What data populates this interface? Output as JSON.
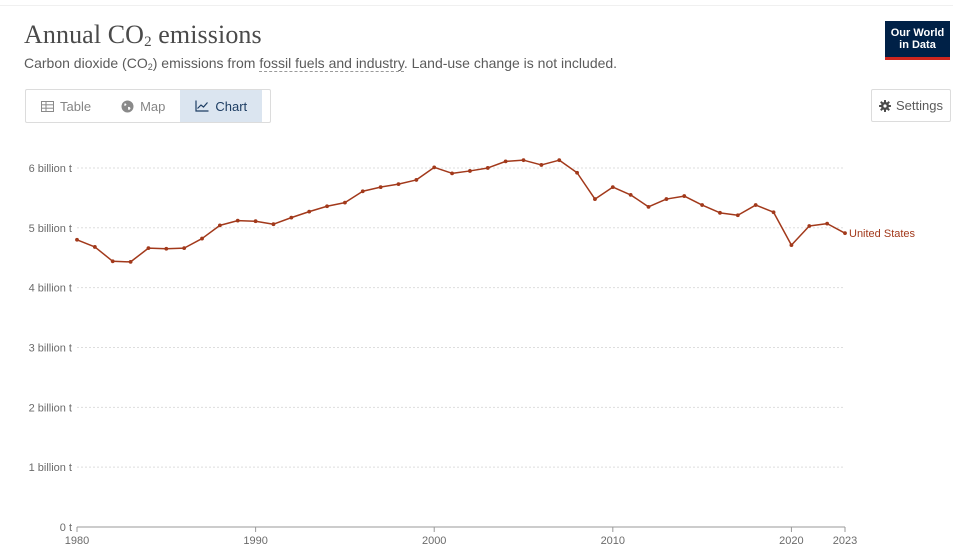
{
  "header": {
    "title_main": "Annual CO",
    "title_sub": "2",
    "title_end": " emissions",
    "subtitle_a": "Carbon dioxide (CO",
    "subtitle_sub": "2",
    "subtitle_b": ") emissions from ",
    "subtitle_link": "fossil fuels and industry",
    "subtitle_c": ". Land-use change is not included."
  },
  "logo": {
    "line1": "Our World",
    "line2": "in Data"
  },
  "tabs": [
    {
      "label": "Table",
      "icon": "table-icon",
      "active": false
    },
    {
      "label": "Map",
      "icon": "globe-icon",
      "active": false
    },
    {
      "label": "Chart",
      "icon": "line-chart-icon",
      "active": true
    }
  ],
  "settings": {
    "label": "Settings",
    "icon": "gear-icon"
  },
  "colors": {
    "series": "#a2391b",
    "grid": "#dddddd",
    "logo_bg": "#002147",
    "logo_accent": "#ce261e"
  },
  "chart_data": {
    "type": "line",
    "title": "Annual CO₂ emissions",
    "x": [
      1980,
      1981,
      1982,
      1983,
      1984,
      1985,
      1986,
      1987,
      1988,
      1989,
      1990,
      1991,
      1992,
      1993,
      1994,
      1995,
      1996,
      1997,
      1998,
      1999,
      2000,
      2001,
      2002,
      2003,
      2004,
      2005,
      2006,
      2007,
      2008,
      2009,
      2010,
      2011,
      2012,
      2013,
      2014,
      2015,
      2016,
      2017,
      2018,
      2019,
      2020,
      2021,
      2022,
      2023
    ],
    "series": [
      {
        "name": "United States",
        "values": [
          4.8,
          4.68,
          4.44,
          4.43,
          4.66,
          4.65,
          4.66,
          4.82,
          5.04,
          5.12,
          5.11,
          5.06,
          5.17,
          5.27,
          5.36,
          5.42,
          5.61,
          5.68,
          5.73,
          5.8,
          6.01,
          5.91,
          5.95,
          6.0,
          6.11,
          6.13,
          6.05,
          6.13,
          5.92,
          5.48,
          5.68,
          5.55,
          5.35,
          5.48,
          5.53,
          5.38,
          5.25,
          5.21,
          5.38,
          5.26,
          4.71,
          5.03,
          5.07,
          4.91
        ]
      }
    ],
    "ylim": [
      0,
      6.3
    ],
    "yticks": [
      {
        "value": 0,
        "label": "0 t"
      },
      {
        "value": 1,
        "label": "1 billion t"
      },
      {
        "value": 2,
        "label": "2 billion t"
      },
      {
        "value": 3,
        "label": "3 billion t"
      },
      {
        "value": 4,
        "label": "4 billion t"
      },
      {
        "value": 5,
        "label": "5 billion t"
      },
      {
        "value": 6,
        "label": "6 billion t"
      }
    ],
    "xticks": [
      {
        "value": 1980,
        "label": "1980"
      },
      {
        "value": 1990,
        "label": "1990"
      },
      {
        "value": 2000,
        "label": "2000"
      },
      {
        "value": 2010,
        "label": "2010"
      },
      {
        "value": 2020,
        "label": "2020"
      },
      {
        "value": 2023,
        "label": "2023"
      }
    ],
    "grid": true,
    "legend": "line-end label"
  }
}
